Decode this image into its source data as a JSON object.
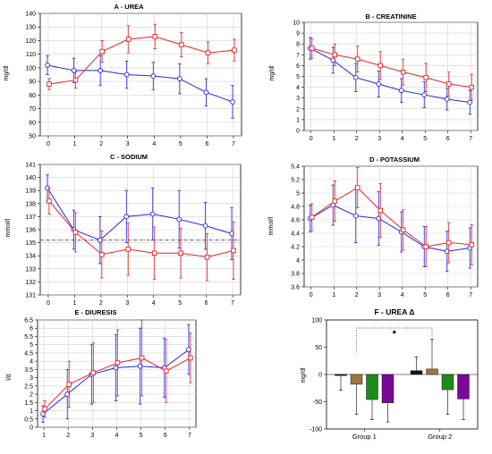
{
  "colors": {
    "group1_line": "#2323e6",
    "group2_line": "#e62323",
    "grid": "#d2d2d2",
    "bar_colors": [
      "#141414",
      "#a0743c",
      "#1c8a1c",
      "#7a0a96"
    ]
  },
  "chart_data": [
    {
      "panel": "A",
      "type": "line",
      "title": "A - UREA",
      "ylabel": "mg/dl",
      "x": [
        0,
        1,
        2,
        3,
        4,
        5,
        6,
        7
      ],
      "ylim": [
        50,
        140
      ],
      "yticks": [
        50,
        60,
        70,
        80,
        90,
        100,
        110,
        120,
        130,
        140
      ],
      "grid": true,
      "series": [
        {
          "values": [
            102,
            98,
            98,
            95,
            94,
            92,
            82,
            75
          ],
          "err": [
            7,
            9,
            11,
            10,
            10,
            11,
            10,
            12
          ],
          "color": "#2323e6",
          "marker": "circle"
        },
        {
          "values": [
            88,
            91,
            112,
            121,
            123,
            117,
            111,
            113
          ],
          "err": [
            4,
            6,
            8,
            10,
            9,
            9,
            8,
            8
          ],
          "color": "#e62323",
          "marker": "square"
        }
      ]
    },
    {
      "panel": "B",
      "type": "line",
      "title": "B - CREATININE",
      "ylabel": "mg/dl",
      "x": [
        0,
        1,
        2,
        3,
        4,
        5,
        6,
        7
      ],
      "ylim": [
        0,
        10
      ],
      "yticks": [
        0,
        1,
        2,
        3,
        4,
        5,
        6,
        7,
        8,
        9,
        10
      ],
      "grid": true,
      "series": [
        {
          "values": [
            7.6,
            6.5,
            4.9,
            4.3,
            3.7,
            3.3,
            2.9,
            2.6
          ],
          "err": [
            1.0,
            1.2,
            1.3,
            1.2,
            1.1,
            1.2,
            1.0,
            1.1
          ],
          "color": "#2323e6",
          "marker": "circle"
        },
        {
          "values": [
            7.6,
            7.0,
            6.6,
            6.0,
            5.4,
            4.9,
            4.3,
            4.0
          ],
          "err": [
            0.9,
            1.0,
            1.2,
            1.3,
            1.2,
            1.3,
            1.1,
            1.2
          ],
          "color": "#e62323",
          "marker": "square"
        }
      ]
    },
    {
      "panel": "C",
      "type": "line",
      "title": "C - SODIUM",
      "ylabel": "mmol/l",
      "x": [
        0,
        1,
        2,
        3,
        4,
        5,
        6,
        7
      ],
      "ylim": [
        131,
        141
      ],
      "yticks": [
        131,
        132,
        133,
        134,
        135,
        136,
        137,
        138,
        139,
        140,
        141
      ],
      "grid": true,
      "reference_line": 135.2,
      "series": [
        {
          "values": [
            139.2,
            136.0,
            135.2,
            137.0,
            137.2,
            136.8,
            136.3,
            135.7
          ],
          "err": [
            1.0,
            1.5,
            1.8,
            2.0,
            2.0,
            2.2,
            1.8,
            2.0
          ],
          "color": "#2323e6",
          "marker": "circle"
        },
        {
          "values": [
            138.2,
            135.8,
            134.1,
            134.5,
            134.2,
            134.2,
            133.9,
            134.4
          ],
          "err": [
            1.0,
            1.5,
            1.8,
            2.0,
            2.0,
            1.9,
            1.8,
            2.2
          ],
          "color": "#e62323",
          "marker": "square"
        }
      ]
    },
    {
      "panel": "D",
      "type": "line",
      "title": "D - POTASSIUM",
      "ylabel": "mmol/l",
      "x": [
        0,
        1,
        2,
        3,
        4,
        5,
        6,
        7
      ],
      "ylim": [
        3.6,
        5.4
      ],
      "yticks": [
        3.6,
        3.8,
        4.0,
        4.2,
        4.4,
        4.6,
        4.8,
        5.0,
        5.2,
        5.4
      ],
      "grid": true,
      "series": [
        {
          "values": [
            4.62,
            4.82,
            4.66,
            4.62,
            4.42,
            4.2,
            4.13,
            4.18
          ],
          "err": [
            0.2,
            0.3,
            0.4,
            0.4,
            0.3,
            0.3,
            0.3,
            0.3
          ],
          "color": "#2323e6",
          "marker": "circle"
        },
        {
          "values": [
            4.64,
            4.88,
            5.08,
            4.74,
            4.45,
            4.2,
            4.26,
            4.23
          ],
          "err": [
            0.2,
            0.3,
            0.3,
            0.4,
            0.3,
            0.3,
            0.3,
            0.3
          ],
          "color": "#e62323",
          "marker": "square"
        }
      ]
    },
    {
      "panel": "E",
      "type": "line",
      "title": "E - DIURESIS",
      "ylabel": "l/d",
      "x": [
        1,
        2,
        3,
        4,
        5,
        6,
        7
      ],
      "ylim": [
        0,
        6.5
      ],
      "yticks": [
        0,
        0.5,
        1,
        1.5,
        2,
        2.5,
        3,
        3.5,
        4,
        4.5,
        5,
        5.5,
        6,
        6.5
      ],
      "grid": true,
      "series": [
        {
          "values": [
            0.8,
            2.0,
            3.2,
            3.6,
            3.7,
            3.6,
            4.7
          ],
          "err": [
            0.5,
            1.5,
            1.8,
            2.0,
            2.3,
            1.8,
            1.5
          ],
          "color": "#2323e6",
          "marker": "circle"
        },
        {
          "values": [
            1.1,
            2.6,
            3.3,
            3.9,
            4.2,
            3.4,
            4.2
          ],
          "err": [
            0.5,
            1.4,
            1.8,
            2.0,
            2.3,
            1.9,
            1.5
          ],
          "color": "#e62323",
          "marker": "square"
        }
      ]
    },
    {
      "panel": "F",
      "type": "bar",
      "title": "F - UREA Δ",
      "ylabel": "mg/dl",
      "categories": [
        "Group 1",
        "Group 2"
      ],
      "ylim": [
        -100,
        100
      ],
      "yticks": [
        -100,
        -50,
        0,
        50,
        100
      ],
      "grid": false,
      "significance": "*",
      "series": [
        {
          "color": "#141414",
          "values": [
            -2,
            7
          ],
          "err": [
            27,
            25
          ]
        },
        {
          "color": "#a0743c",
          "values": [
            -18,
            10
          ],
          "err": [
            55,
            55
          ]
        },
        {
          "color": "#1c8a1c",
          "values": [
            -46,
            -28
          ],
          "err": [
            37,
            45
          ]
        },
        {
          "color": "#7a0a96",
          "values": [
            -52,
            -45
          ],
          "err": [
            35,
            38
          ]
        }
      ]
    }
  ]
}
